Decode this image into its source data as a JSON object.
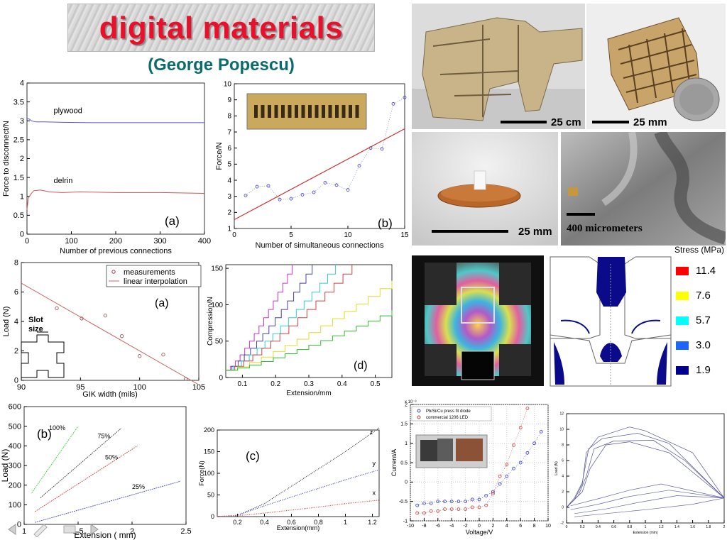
{
  "slide": {
    "title": "digital materials",
    "subtitle": "(George Popescu)"
  },
  "colors": {
    "title": "#e8102a",
    "subtitle": "#0d6b6b",
    "plot_blue": "#3c3cc8",
    "plot_red": "#c83c3c"
  },
  "photos": {
    "p1_scale": "25 cm",
    "p2_scale": "25 mm",
    "p3_scale": "25 mm",
    "p4_scale": "400 micrometers"
  },
  "stress_legend": {
    "title": "Stress (MPa)",
    "entries": [
      {
        "label": "11.4",
        "color": "#ff0000"
      },
      {
        "label": "7.6",
        "color": "#ffff00"
      },
      {
        "label": "5.7",
        "color": "#00ffff"
      },
      {
        "label": "3.0",
        "color": "#1e64ff"
      },
      {
        "label": "1.9",
        "color": "#00008c"
      }
    ]
  },
  "chart_data": [
    {
      "id": "c1",
      "type": "line",
      "panel": "(a)",
      "xlabel": "Number of previous connections",
      "ylabel": "Force to disconnect/N",
      "xlim": [
        0,
        400
      ],
      "ylim": [
        0,
        4
      ],
      "xticks": [
        0,
        100,
        200,
        300,
        400
      ],
      "yticks": [
        0,
        0.5,
        1,
        1.5,
        2,
        2.5,
        3,
        3.5,
        4
      ],
      "series": [
        {
          "name": "plywood",
          "x": [
            0,
            5,
            10,
            20,
            40,
            80,
            150,
            250,
            350,
            400
          ],
          "y": [
            3.05,
            3.05,
            3.0,
            2.97,
            2.97,
            2.96,
            2.95,
            2.95,
            2.95,
            2.95
          ]
        },
        {
          "name": "delrin",
          "x": [
            0,
            3,
            8,
            15,
            30,
            50,
            80,
            120,
            200,
            300,
            400
          ],
          "y": [
            0.65,
            0.95,
            1.05,
            1.15,
            1.17,
            1.12,
            1.1,
            1.12,
            1.1,
            1.1,
            1.08
          ]
        }
      ]
    },
    {
      "id": "c2",
      "type": "line",
      "panel": "(b)",
      "xlabel": "Number of simultaneous connections",
      "ylabel": "Force/N",
      "xlim": [
        0,
        15
      ],
      "ylim": [
        1,
        10
      ],
      "xticks": [
        0,
        5,
        10,
        15
      ],
      "yticks": [
        1,
        2,
        3,
        4,
        5,
        6,
        7,
        8,
        9,
        10
      ],
      "series": [
        {
          "x": [
            1,
            2,
            3,
            4,
            5,
            6,
            7,
            8,
            9,
            10,
            11,
            12,
            13,
            14,
            15
          ],
          "y": [
            3.05,
            3.6,
            3.65,
            2.8,
            2.85,
            3.1,
            3.25,
            3.85,
            3.7,
            3.4,
            4.9,
            6.0,
            5.95,
            8.75,
            9.15
          ]
        },
        {
          "x": [
            0,
            15
          ],
          "y": [
            1.55,
            7.2
          ]
        }
      ]
    },
    {
      "id": "c3",
      "type": "scatter",
      "panel": "(a)",
      "xlabel": "GIK width (mils)",
      "ylabel": "Load (N)",
      "xlim": [
        90,
        105
      ],
      "ylim": [
        0,
        8
      ],
      "xticks": [
        90,
        95,
        100,
        105
      ],
      "yticks": [
        0,
        2,
        4,
        6,
        8
      ],
      "annotation": "Slot size",
      "series": [
        {
          "name": "measurements",
          "x": [
            93,
            95.1,
            97.1,
            98.5,
            100,
            102,
            103.9
          ],
          "y": [
            4.9,
            4.2,
            4.4,
            3.0,
            1.65,
            1.75,
            0.1
          ]
        },
        {
          "name": "linear interpolation",
          "x": [
            90,
            105
          ],
          "y": [
            6.6,
            -0.3
          ]
        }
      ]
    },
    {
      "id": "c4",
      "type": "line",
      "panel": "(d)",
      "xlabel": "Extension/mm",
      "ylabel": "Compression/N",
      "xlim": [
        0.05,
        0.55
      ],
      "ylim": [
        0,
        155
      ],
      "xticks": [
        0.1,
        0.2,
        0.3,
        0.4,
        0.5
      ],
      "yticks": [
        0,
        50,
        100,
        150
      ],
      "series": [
        {
          "x": [
            0.05,
            0.25
          ],
          "y": [
            10,
            155
          ],
          "color": "#cc33cc"
        },
        {
          "x": [
            0.05,
            0.31
          ],
          "y": [
            10,
            155
          ],
          "color": "#4444aa"
        },
        {
          "x": [
            0.05,
            0.38
          ],
          "y": [
            10,
            155
          ],
          "color": "#33cccc"
        },
        {
          "x": [
            0.05,
            0.43
          ],
          "y": [
            10,
            155
          ],
          "color": "#cc4444"
        },
        {
          "x": [
            0.05,
            0.55
          ],
          "y": [
            10,
            133
          ],
          "color": "#dddd33"
        },
        {
          "x": [
            0.05,
            0.55
          ],
          "y": [
            10,
            92
          ],
          "color": "#33bb33"
        }
      ]
    },
    {
      "id": "c5",
      "type": "line",
      "panel": "(b)",
      "xlabel": "Extension ( mm)",
      "ylabel": "Load (N)",
      "xlim": [
        1,
        2.5
      ],
      "ylim": [
        0,
        600
      ],
      "xticks": [
        1,
        1.5,
        2,
        2.5
      ],
      "yticks": [
        0,
        100,
        200,
        300,
        400,
        500,
        600
      ],
      "series": [
        {
          "name": "100%",
          "x": [
            1.07,
            1.5
          ],
          "y": [
            160,
            500
          ]
        },
        {
          "name": "75%",
          "x": [
            1.15,
            1.9
          ],
          "y": [
            135,
            490
          ]
        },
        {
          "name": "50%",
          "x": [
            1.1,
            2.05
          ],
          "y": [
            65,
            400
          ]
        },
        {
          "name": "25%",
          "x": [
            1.1,
            2.45
          ],
          "y": [
            10,
            220
          ]
        }
      ]
    },
    {
      "id": "c6",
      "type": "line",
      "panel": "(c)",
      "xlabel": "Extension(mm)",
      "ylabel": "Force(N)",
      "xlim": [
        0.05,
        1.25
      ],
      "ylim": [
        0,
        200
      ],
      "xticks": [
        0.2,
        0.4,
        0.6,
        0.8,
        1,
        1.2
      ],
      "yticks": [
        0,
        50,
        100,
        150,
        200
      ],
      "series": [
        {
          "name": "z",
          "x": [
            0.05,
            0.2,
            0.4,
            0.6,
            0.8,
            1.0,
            1.25
          ],
          "y": [
            0,
            3,
            30,
            70,
            110,
            150,
            205
          ]
        },
        {
          "name": "y",
          "x": [
            0.05,
            0.2,
            0.4,
            0.6,
            0.8,
            1.0,
            1.25
          ],
          "y": [
            0,
            3,
            25,
            45,
            65,
            85,
            108
          ]
        },
        {
          "name": "x",
          "x": [
            0.05,
            0.2,
            0.4,
            0.6,
            0.8,
            1.0,
            1.25
          ],
          "y": [
            0,
            2,
            8,
            15,
            22,
            30,
            38
          ]
        }
      ]
    },
    {
      "id": "c7",
      "type": "scatter",
      "xlabel": "Voltage/V",
      "ylabel": "Current/A",
      "exponent_label": "x 10⁻³",
      "xlim": [
        -10,
        10
      ],
      "ylim": [
        -1,
        2
      ],
      "xticks": [
        -10,
        -8,
        -6,
        -4,
        -2,
        0,
        2,
        4,
        6,
        8,
        10
      ],
      "yticks": [
        -1,
        -0.5,
        0,
        0.5,
        1,
        1.5,
        2
      ],
      "series": [
        {
          "name": "Pb/Si/Cu press fit diode",
          "x": [
            -9,
            -8,
            -7,
            -6,
            -5,
            -4,
            -3,
            -2,
            -1,
            0,
            1,
            2,
            3,
            4,
            5,
            6,
            7,
            8,
            9
          ],
          "y": [
            -0.6,
            -0.55,
            -0.55,
            -0.5,
            -0.5,
            -0.5,
            -0.5,
            -0.5,
            -0.45,
            -0.45,
            -0.35,
            -0.25,
            -0.05,
            0.15,
            0.35,
            0.5,
            0.75,
            1.0,
            1.3
          ]
        },
        {
          "name": "commercial 1206 LED",
          "x": [
            -9,
            -8,
            -7,
            -6,
            -5,
            -4,
            -3,
            -2,
            -1,
            0,
            1,
            2,
            3,
            4,
            5,
            6,
            7
          ],
          "y": [
            -0.8,
            -0.8,
            -0.75,
            -0.75,
            -0.7,
            -0.7,
            -0.7,
            -0.7,
            -0.65,
            -0.65,
            -0.6,
            -0.3,
            0.15,
            0.45,
            0.95,
            1.4,
            1.9
          ]
        }
      ]
    },
    {
      "id": "c8",
      "type": "line",
      "xlabel": "Extension (mm)",
      "ylabel": "Load (N)",
      "xlim": [
        0,
        2
      ],
      "ylim": [
        -2,
        12
      ],
      "xticks": [
        0,
        0.2,
        0.4,
        0.6,
        0.8,
        1,
        1.2,
        1.4,
        1.6,
        1.8,
        2
      ],
      "yticks": [
        -2,
        0,
        2,
        4,
        6,
        8,
        10,
        12
      ]
    }
  ]
}
